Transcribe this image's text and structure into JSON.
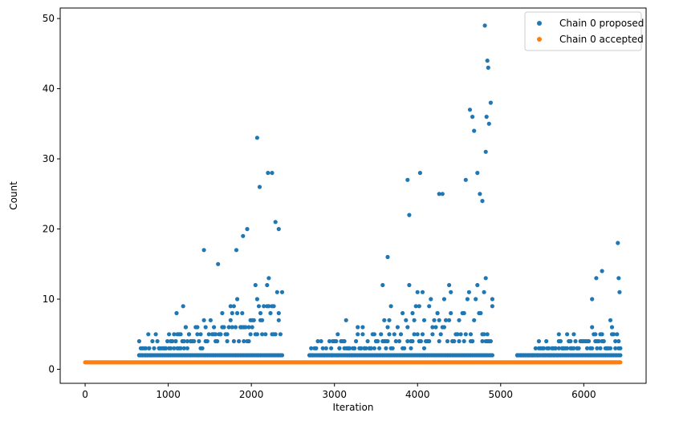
{
  "chart_data": {
    "type": "scatter",
    "title": "",
    "xlabel": "Iteration",
    "ylabel": "Count",
    "xlim": [
      -300,
      6750
    ],
    "ylim": [
      -2,
      51.5
    ],
    "xticks": [
      0,
      1000,
      2000,
      3000,
      4000,
      5000,
      6000
    ],
    "yticks": [
      0,
      10,
      20,
      30,
      40,
      50
    ],
    "grid": false,
    "legend_position": "top-right",
    "iterations": 6440,
    "colors": {
      "proposed": "#1f77b4",
      "accepted": "#ff7f0e"
    },
    "series": [
      {
        "name": "Chain 0 proposed",
        "color": "#1f77b4",
        "description_points": [
          [
            2070,
            33
          ],
          [
            2100,
            26
          ],
          [
            2200,
            28
          ],
          [
            2250,
            28
          ],
          [
            2290,
            21
          ],
          [
            2330,
            20
          ],
          [
            1430,
            17
          ],
          [
            1820,
            17
          ],
          [
            1900,
            19
          ],
          [
            1950,
            20
          ],
          [
            3900,
            22
          ],
          [
            3880,
            27
          ],
          [
            4030,
            28
          ],
          [
            4260,
            25
          ],
          [
            4300,
            25
          ],
          [
            4580,
            27
          ],
          [
            4630,
            37
          ],
          [
            4660,
            36
          ],
          [
            4680,
            34
          ],
          [
            4720,
            28
          ],
          [
            4820,
            31
          ],
          [
            4810,
            49
          ],
          [
            4840,
            44
          ],
          [
            4850,
            43
          ],
          [
            4860,
            35
          ],
          [
            4880,
            38
          ],
          [
            4830,
            36
          ],
          [
            4750,
            25
          ],
          [
            4780,
            24
          ],
          [
            6410,
            18
          ],
          [
            6220,
            14
          ],
          [
            6150,
            13
          ],
          [
            6420,
            13
          ],
          [
            6430,
            11
          ],
          [
            6100,
            10
          ],
          [
            5700,
            5
          ],
          [
            5460,
            4
          ],
          [
            5550,
            4
          ],
          [
            3640,
            16
          ],
          [
            3580,
            12
          ],
          [
            1600,
            15
          ],
          [
            1100,
            8
          ],
          [
            1180,
            9
          ],
          [
            760,
            5
          ]
        ],
        "bands": [
          {
            "x": [
              650,
              2380
            ],
            "y1": [
              2,
              5
            ],
            "y2": [
              4,
              14
            ]
          },
          {
            "x": [
              2700,
              4900
            ],
            "y1": [
              2,
              4
            ],
            "y2": [
              4,
              16
            ]
          },
          {
            "x": [
              5200,
              6440
            ],
            "y1": [
              2,
              3
            ],
            "y2": [
              2,
              8
            ]
          }
        ]
      },
      {
        "name": "Chain 0 accepted",
        "color": "#ff7f0e",
        "description": "count = 1 at every iteration from 0 to 6440",
        "y": 1,
        "x_range": [
          0,
          6440
        ]
      }
    ]
  }
}
